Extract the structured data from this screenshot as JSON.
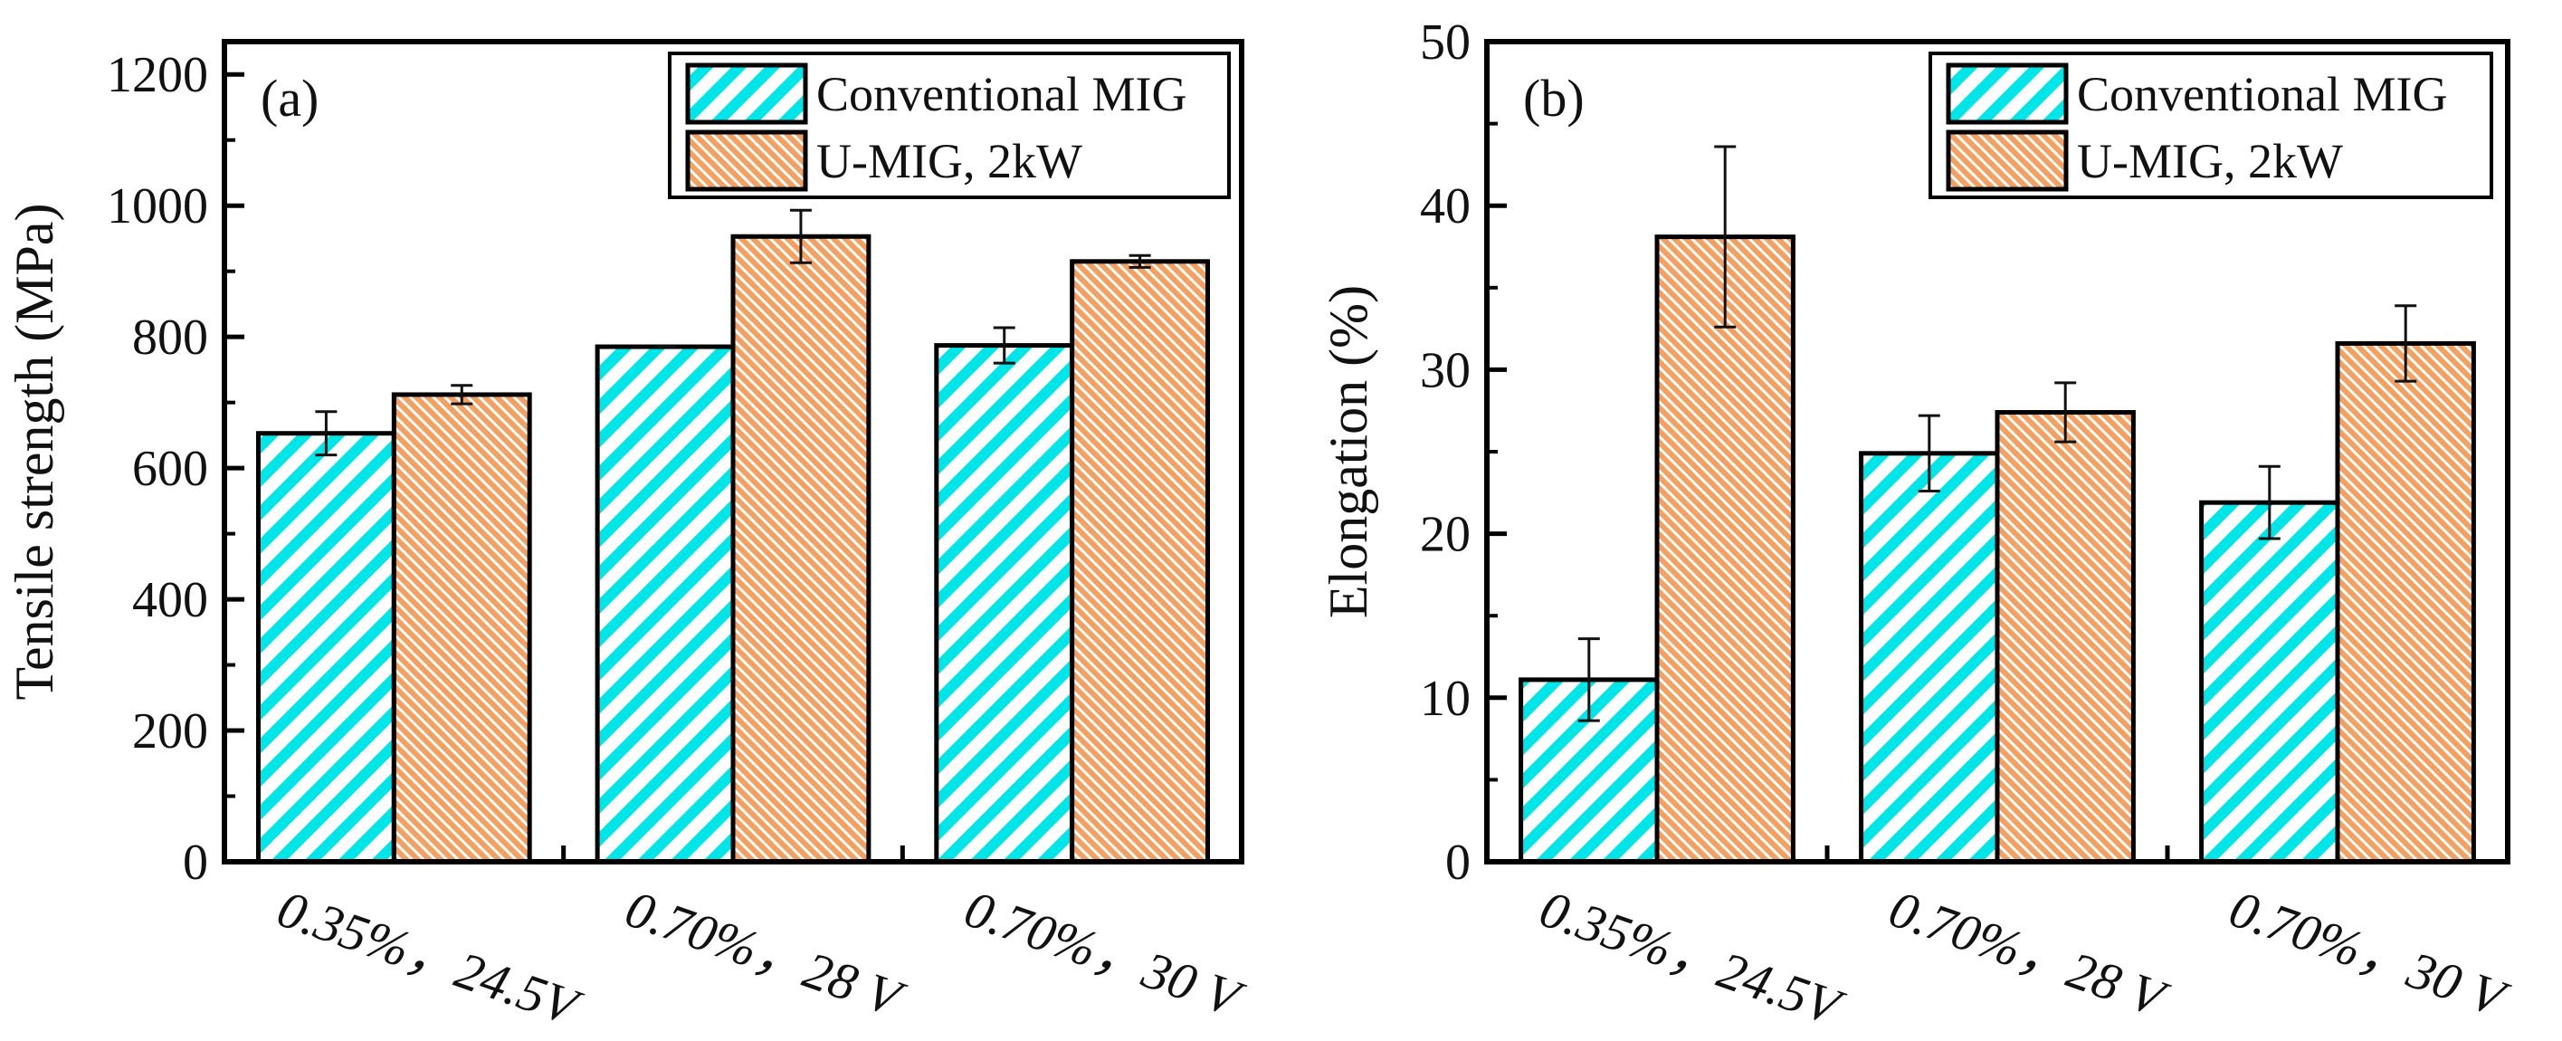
{
  "chart_data": [
    {
      "type": "bar",
      "panel_label": "(a)",
      "title": "",
      "xlabel": "",
      "ylabel": "Tensile strength (MPa)",
      "ylim": [
        0,
        1250
      ],
      "yticks": [
        0,
        200,
        400,
        600,
        800,
        1000,
        1200
      ],
      "categories": [
        "0.35%，24.5V",
        "0.70%，28 V",
        "0.70%，30 V"
      ],
      "legend_position": "top-right",
      "series": [
        {
          "name": "Conventional MIG",
          "color": "#00E5E8",
          "values": [
            653,
            785,
            787
          ],
          "errors": [
            33,
            0,
            27
          ]
        },
        {
          "name": "U-MIG, 2kW",
          "color": "#F4A060",
          "values": [
            712,
            953,
            915
          ],
          "errors": [
            14,
            40,
            9
          ]
        }
      ]
    },
    {
      "type": "bar",
      "panel_label": "(b)",
      "title": "",
      "xlabel": "",
      "ylabel": "Elongation (%)",
      "ylim": [
        0,
        50
      ],
      "yticks": [
        0,
        10,
        20,
        30,
        40,
        50
      ],
      "categories": [
        "0.35%，24.5V",
        "0.70%，28 V",
        "0.70%，30 V"
      ],
      "legend_position": "top-right",
      "series": [
        {
          "name": "Conventional MIG",
          "color": "#00E5E8",
          "values": [
            11.1,
            24.9,
            21.9
          ],
          "errors": [
            2.5,
            2.3,
            2.2
          ]
        },
        {
          "name": "U-MIG, 2kW",
          "color": "#F4A060",
          "values": [
            38.1,
            27.4,
            31.6
          ],
          "errors": [
            5.5,
            1.8,
            2.3
          ]
        }
      ]
    }
  ]
}
